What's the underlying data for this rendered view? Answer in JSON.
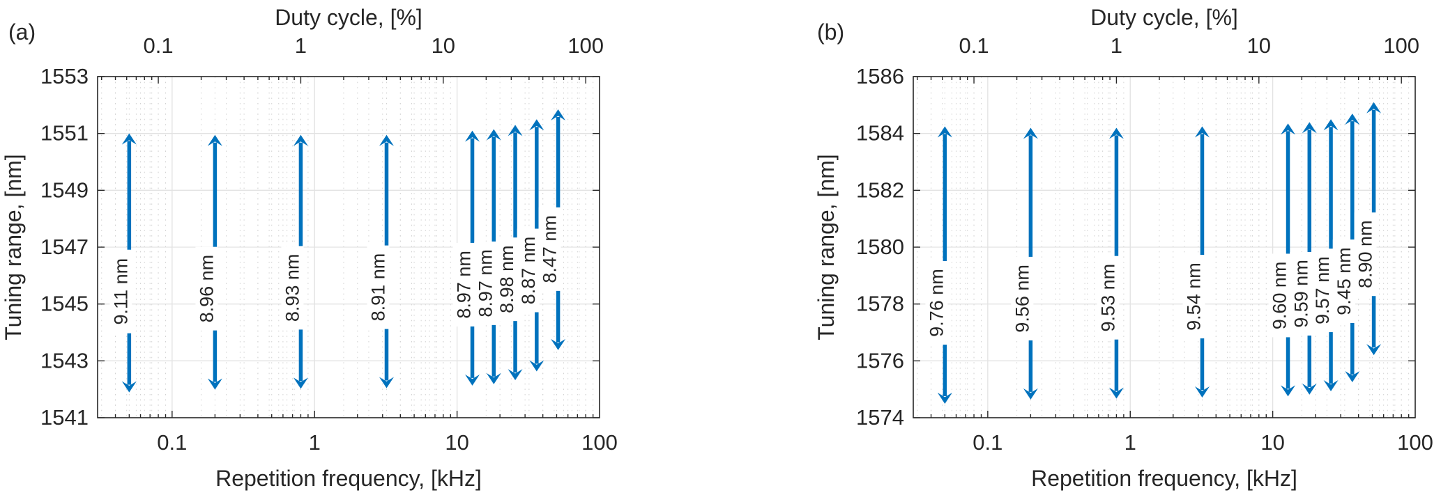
{
  "figure": {
    "background": "#ffffff",
    "text_color": "#262626",
    "axis_color": "#262626",
    "arrow_color": "#0072BD",
    "grid_color": "#e2e2e2",
    "minor_grid_color": "#d2d2d2",
    "label_bg_color": "#ffffff"
  },
  "chart_data": [
    {
      "type": "range-arrows",
      "panel_label": "(a)",
      "xlabel": "Repetition frequency, [kHz]",
      "ylabel": "Tuning range, [nm]",
      "x_scale": "log",
      "xlim_khz": [
        0.03,
        100
      ],
      "x_ticks": [
        "0.1",
        "1",
        "10",
        "100"
      ],
      "top_axis": {
        "label": "Duty cycle, [%]",
        "ticks": [
          "0.1",
          "1",
          "10",
          "100"
        ],
        "duty_to_freq_factor": 1.25
      },
      "ylim_nm": [
        1541,
        1553
      ],
      "y_ticks": [
        "1541",
        "1543",
        "1545",
        "1547",
        "1549",
        "1551",
        "1553"
      ],
      "grid": "on",
      "arrows": [
        {
          "freq_khz": 0.05,
          "top_nm": 1551.0,
          "range_nm": 9.11,
          "label": "9.11 nm"
        },
        {
          "freq_khz": 0.2,
          "top_nm": 1550.95,
          "range_nm": 8.96,
          "label": "8.96 nm"
        },
        {
          "freq_khz": 0.8,
          "top_nm": 1550.95,
          "range_nm": 8.93,
          "label": "8.93 nm"
        },
        {
          "freq_khz": 3.2,
          "top_nm": 1550.95,
          "range_nm": 8.91,
          "label": "8.91 nm"
        },
        {
          "freq_khz": 12.8,
          "top_nm": 1551.1,
          "range_nm": 8.97,
          "label": "8.97 nm"
        },
        {
          "freq_khz": 18.1,
          "top_nm": 1551.15,
          "range_nm": 8.97,
          "label": "8.97 nm"
        },
        {
          "freq_khz": 25.6,
          "top_nm": 1551.3,
          "range_nm": 8.98,
          "label": "8.98 nm"
        },
        {
          "freq_khz": 36.2,
          "top_nm": 1551.5,
          "range_nm": 8.87,
          "label": "8.87 nm"
        },
        {
          "freq_khz": 51.2,
          "top_nm": 1551.85,
          "range_nm": 8.47,
          "label": "8.47 nm"
        }
      ]
    },
    {
      "type": "range-arrows",
      "panel_label": "(b)",
      "xlabel": "Repetition frequency, [kHz]",
      "ylabel": "Tuning range, [nm]",
      "x_scale": "log",
      "xlim_khz": [
        0.03,
        100
      ],
      "x_ticks": [
        "0.1",
        "1",
        "10",
        "100"
      ],
      "top_axis": {
        "label": "Duty cycle, [%]",
        "ticks": [
          "0.1",
          "1",
          "10",
          "100"
        ],
        "duty_to_freq_factor": 1.25
      },
      "ylim_nm": [
        1574,
        1586
      ],
      "y_ticks": [
        "1574",
        "1576",
        "1578",
        "1580",
        "1582",
        "1584",
        "1586"
      ],
      "grid": "on",
      "arrows": [
        {
          "freq_khz": 0.05,
          "top_nm": 1584.25,
          "range_nm": 9.76,
          "label": "9.76 nm"
        },
        {
          "freq_khz": 0.2,
          "top_nm": 1584.2,
          "range_nm": 9.56,
          "label": "9.56 nm"
        },
        {
          "freq_khz": 0.8,
          "top_nm": 1584.2,
          "range_nm": 9.53,
          "label": "9.53 nm"
        },
        {
          "freq_khz": 3.2,
          "top_nm": 1584.25,
          "range_nm": 9.54,
          "label": "9.54 nm"
        },
        {
          "freq_khz": 12.8,
          "top_nm": 1584.35,
          "range_nm": 9.6,
          "label": "9.60 nm"
        },
        {
          "freq_khz": 18.1,
          "top_nm": 1584.4,
          "range_nm": 9.59,
          "label": "9.59 nm"
        },
        {
          "freq_khz": 25.6,
          "top_nm": 1584.5,
          "range_nm": 9.57,
          "label": "9.57 nm"
        },
        {
          "freq_khz": 36.2,
          "top_nm": 1584.7,
          "range_nm": 9.45,
          "label": "9.45 nm"
        },
        {
          "freq_khz": 51.2,
          "top_nm": 1585.1,
          "range_nm": 8.9,
          "label": "8.90 nm"
        }
      ]
    }
  ]
}
